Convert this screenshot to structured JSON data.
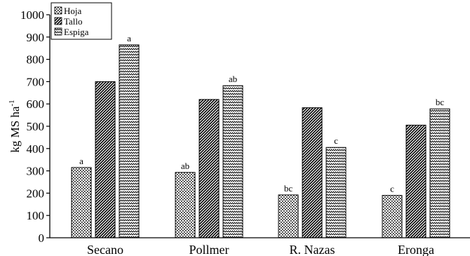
{
  "chart_data": {
    "type": "bar",
    "ylabel": "kg MS ha",
    "ylabel_sup": "-1",
    "ylim": [
      0,
      1000
    ],
    "yticks": [
      "0",
      "100",
      "200",
      "300",
      "400",
      "500",
      "600",
      "700",
      "800",
      "900",
      "1000"
    ],
    "categories": [
      "Secano",
      "Pollmer",
      "R. Nazas",
      "Eronga"
    ],
    "legend_position": "top-left",
    "series": [
      {
        "name": "Hoja",
        "pattern": "dots",
        "values": [
          315,
          293,
          192,
          190
        ],
        "labels": [
          "a",
          "ab",
          "bc",
          "c"
        ]
      },
      {
        "name": "Tallo",
        "pattern": "diagonal",
        "values": [
          700,
          620,
          583,
          505
        ],
        "labels": [
          "",
          "",
          "",
          ""
        ]
      },
      {
        "name": "Espiga",
        "pattern": "zigzag",
        "values": [
          865,
          682,
          405,
          578
        ],
        "labels": [
          "a",
          "ab",
          "c",
          "bc"
        ]
      }
    ]
  }
}
